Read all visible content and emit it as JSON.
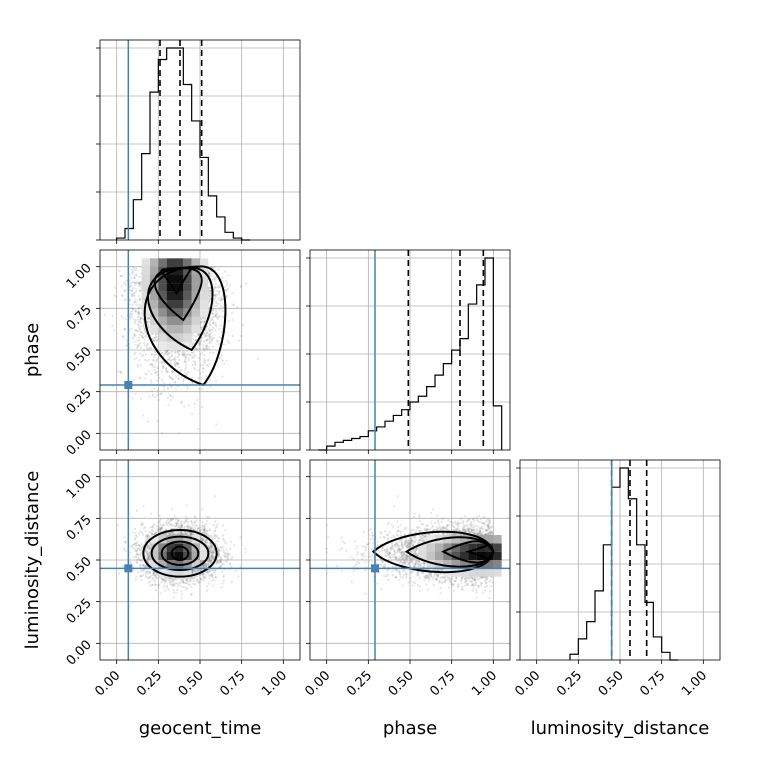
{
  "chart_data": {
    "type": "corner",
    "parameters": [
      "geocent_time",
      "phase",
      "luminosity_distance"
    ],
    "axis_range": [
      -0.1,
      1.1
    ],
    "ticks": [
      0.0,
      0.25,
      0.5,
      0.75,
      1.0
    ],
    "tick_labels": [
      "0.00",
      "0.25",
      "0.50",
      "0.75",
      "1.00"
    ],
    "grid": true,
    "truths": {
      "geocent_time": 0.07,
      "phase": 0.29,
      "luminosity_distance": 0.45
    },
    "truth_color": "#4682b4",
    "quantiles": {
      "geocent_time": [
        0.26,
        0.38,
        0.51
      ],
      "phase": [
        0.49,
        0.8,
        0.94
      ],
      "luminosity_distance": [
        0.45,
        0.56,
        0.66
      ]
    },
    "histograms": {
      "geocent_time": {
        "bin_edges": [
          0.0,
          0.05,
          0.1,
          0.15,
          0.2,
          0.25,
          0.3,
          0.35,
          0.4,
          0.45,
          0.5,
          0.55,
          0.6,
          0.65,
          0.7,
          0.75,
          0.8
        ],
        "counts": [
          0.01,
          0.06,
          0.21,
          0.45,
          0.77,
          0.94,
          1.0,
          1.0,
          0.81,
          0.62,
          0.43,
          0.23,
          0.12,
          0.04,
          0.01,
          0.0
        ]
      },
      "phase": {
        "bin_edges": [
          -0.05,
          0.0,
          0.05,
          0.1,
          0.15,
          0.2,
          0.25,
          0.3,
          0.35,
          0.4,
          0.45,
          0.5,
          0.55,
          0.6,
          0.65,
          0.7,
          0.75,
          0.8,
          0.85,
          0.9,
          0.95,
          1.0,
          1.05
        ],
        "counts": [
          0.0,
          0.02,
          0.04,
          0.05,
          0.06,
          0.07,
          0.1,
          0.12,
          0.15,
          0.18,
          0.21,
          0.25,
          0.28,
          0.33,
          0.39,
          0.45,
          0.52,
          0.58,
          0.76,
          0.86,
          1.0,
          0.23
        ]
      },
      "luminosity_distance": {
        "bin_edges": [
          0.2,
          0.25,
          0.3,
          0.35,
          0.4,
          0.45,
          0.5,
          0.55,
          0.6,
          0.65,
          0.7,
          0.75,
          0.8,
          0.85
        ],
        "counts": [
          0.03,
          0.11,
          0.2,
          0.36,
          0.6,
          0.9,
          1.0,
          0.84,
          0.6,
          0.3,
          0.12,
          0.04,
          0.0
        ]
      }
    },
    "joint": {
      "geocent_time|phase": {
        "mean": [
          0.36,
          0.88
        ],
        "contours_at_phase_levels": [
          [
            0.18,
            0.58,
            0.28
          ],
          [
            0.22,
            0.52,
            0.46
          ],
          [
            0.27,
            0.47,
            0.65
          ],
          [
            0.3,
            0.43,
            0.84
          ]
        ]
      },
      "geocent_time|luminosity_distance": {
        "mean": [
          0.38,
          0.54
        ],
        "ellipses": [
          [
            0.22,
            0.14
          ],
          [
            0.17,
            0.1
          ],
          [
            0.11,
            0.07
          ],
          [
            0.05,
            0.04
          ]
        ]
      },
      "phase|luminosity_distance": {
        "mean": [
          0.93,
          0.54
        ],
        "contours": "wedge toward phase=1.0"
      }
    }
  }
}
